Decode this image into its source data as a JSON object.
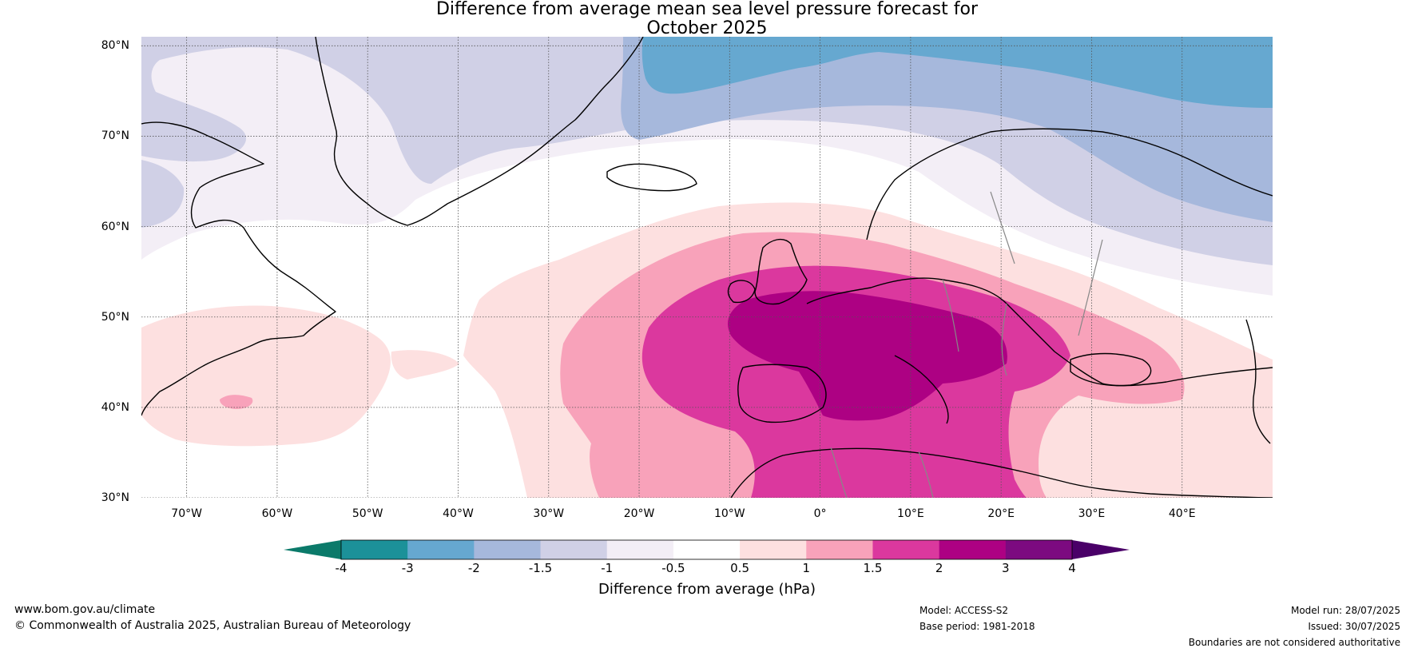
{
  "title_line1": "Difference from average mean sea level pressure forecast for",
  "title_line2": "October 2025",
  "lat_ticks": [
    {
      "lat": 80,
      "label": "80°N"
    },
    {
      "lat": 70,
      "label": "70°N"
    },
    {
      "lat": 60,
      "label": "60°N"
    },
    {
      "lat": 50,
      "label": "50°N"
    },
    {
      "lat": 40,
      "label": "40°N"
    },
    {
      "lat": 30,
      "label": "30°N"
    }
  ],
  "lon_ticks": [
    {
      "lon": -70,
      "label": "70°W"
    },
    {
      "lon": -60,
      "label": "60°W"
    },
    {
      "lon": -50,
      "label": "50°W"
    },
    {
      "lon": -40,
      "label": "40°W"
    },
    {
      "lon": -30,
      "label": "30°W"
    },
    {
      "lon": -20,
      "label": "20°W"
    },
    {
      "lon": -10,
      "label": "10°W"
    },
    {
      "lon": 0,
      "label": "0°"
    },
    {
      "lon": 10,
      "label": "10°E"
    },
    {
      "lon": 20,
      "label": "20°E"
    },
    {
      "lon": 30,
      "label": "30°E"
    },
    {
      "lon": 40,
      "label": "40°E"
    }
  ],
  "map_extent": {
    "lon_min": -75,
    "lon_max": 50,
    "lat_min": 30,
    "lat_max": 81
  },
  "colorbar": {
    "label": "Difference from average (hPa)",
    "ticks": [
      "-4",
      "-3",
      "-2",
      "-1.5",
      "-1",
      "-0.5",
      "0.5",
      "1",
      "1.5",
      "2",
      "3",
      "4"
    ],
    "under_color": "#0b7a6a",
    "over_color": "#4a0068",
    "colors": [
      "#1c9199",
      "#66a8d0",
      "#a6b8dc",
      "#d0d0e6",
      "#f3eef6",
      "#ffffff",
      "#fde0e0",
      "#f8a2ba",
      "#db389e",
      "#ad0183",
      "#7c0a80"
    ]
  },
  "footer": {
    "website": "www.bom.gov.au/climate",
    "copyright": "© Commonwealth of Australia 2025, Australian Bureau of Meteorology",
    "model": "Model: ACCESS-S2",
    "base_period": "Base period: 1981-2018",
    "model_run": "Model run: 28/07/2025",
    "issued": "Issued: 30/07/2025",
    "boundaries": "Boundaries are not considered authoritative"
  }
}
